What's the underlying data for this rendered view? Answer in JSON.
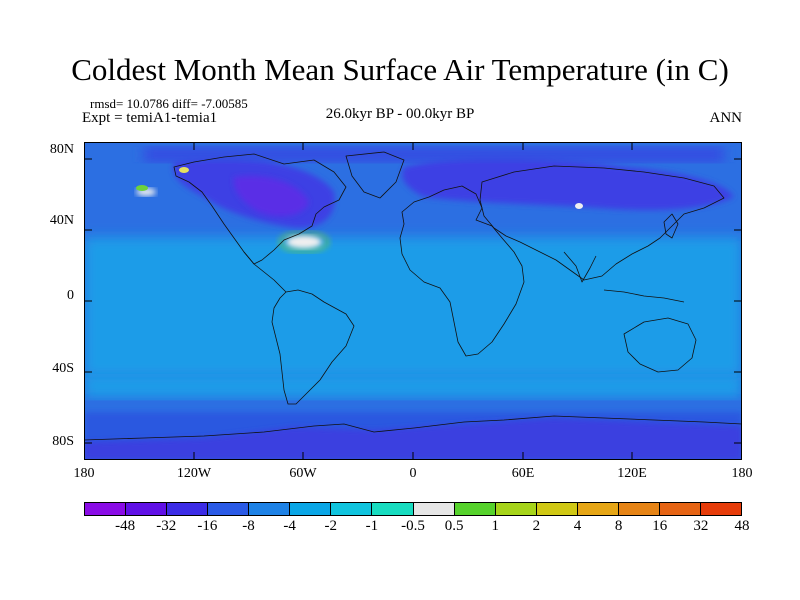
{
  "title": "Coldest Month Mean Surface Air Temperature (in C)",
  "stats": "rmsd= 10.0786 diff= -7.00585",
  "experiment": "Expt = temiA1-temia1",
  "period": "26.0kyr BP - 00.0kyr BP",
  "season": "ANN",
  "map": {
    "lat_ticks": [
      "80N",
      "40N",
      "0",
      "40S",
      "80S"
    ],
    "lon_ticks": [
      "180",
      "120W",
      "60W",
      "0",
      "60E",
      "120E",
      "180"
    ]
  },
  "colorbar": {
    "colors": [
      "#8a0ce6",
      "#6010e6",
      "#3c2ce6",
      "#2a5ae6",
      "#1e82e6",
      "#0aa6e6",
      "#10c4de",
      "#18dcc0",
      "#e6e6e6",
      "#56d22c",
      "#a6d41a",
      "#d0c814",
      "#e6a616",
      "#e68416",
      "#e66414",
      "#e63c0a"
    ],
    "labels": [
      "-48",
      "-32",
      "-16",
      "-8",
      "-4",
      "-2",
      "-1",
      "-0.5",
      "0.5",
      "1",
      "2",
      "4",
      "8",
      "16",
      "32",
      "48"
    ]
  },
  "palette": {
    "deep": "#3d3fe4",
    "mid": "#2c6fe2",
    "light": "#1f9ce8",
    "cyan": "#16c2d8",
    "white": "#efefef",
    "green": "#6ed23a",
    "coast": "#111111"
  }
}
